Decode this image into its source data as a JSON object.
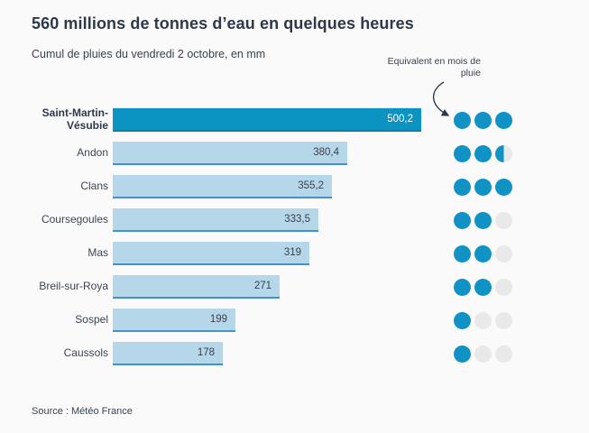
{
  "header": {
    "title": "560 millions de tonnes d’eau en quelques heures",
    "subtitle": "Cumul de pluies du vendredi 2 octobre, en mm"
  },
  "annotation": {
    "label": "Equivalent en mois de pluie"
  },
  "source": "Source : Météo France",
  "colors": {
    "background": "#fafafa",
    "bar_light": "#b5d7e9",
    "bar_light_border": "#4493c5",
    "bar_highlight": "#0b93c1",
    "bar_highlight_border": "#0b7fad",
    "dot_full": "#1093c4",
    "dot_empty": "#e9e9e9",
    "text_dark": "#2e3849"
  },
  "chart_data": {
    "type": "bar",
    "orientation": "horizontal",
    "title": "560 millions de tonnes d’eau en quelques heures",
    "subtitle": "Cumul de pluies du vendredi 2 octobre, en mm",
    "unit": "mm",
    "categories": [
      "Saint-Martin-Vésubie",
      "Andon",
      "Clans",
      "Coursegoules",
      "Mas",
      "Breil-sur-Roya",
      "Sospel",
      "Caussols"
    ],
    "values": [
      500.2,
      380.4,
      355.2,
      333.5,
      319,
      271,
      199,
      178
    ],
    "value_labels": [
      "500,2",
      "380,4",
      "355,2",
      "333,5",
      "319",
      "271",
      "199",
      "178"
    ],
    "months_equivalent": [
      3,
      2.5,
      3,
      2,
      2,
      2,
      1,
      1
    ],
    "dots_per_row": 3,
    "highlight_index": 0,
    "xlim": [
      0,
      500.2
    ],
    "annotation": "Equivalent en mois de pluie",
    "source": "Source : Météo France",
    "grid": false,
    "legend": "none"
  }
}
